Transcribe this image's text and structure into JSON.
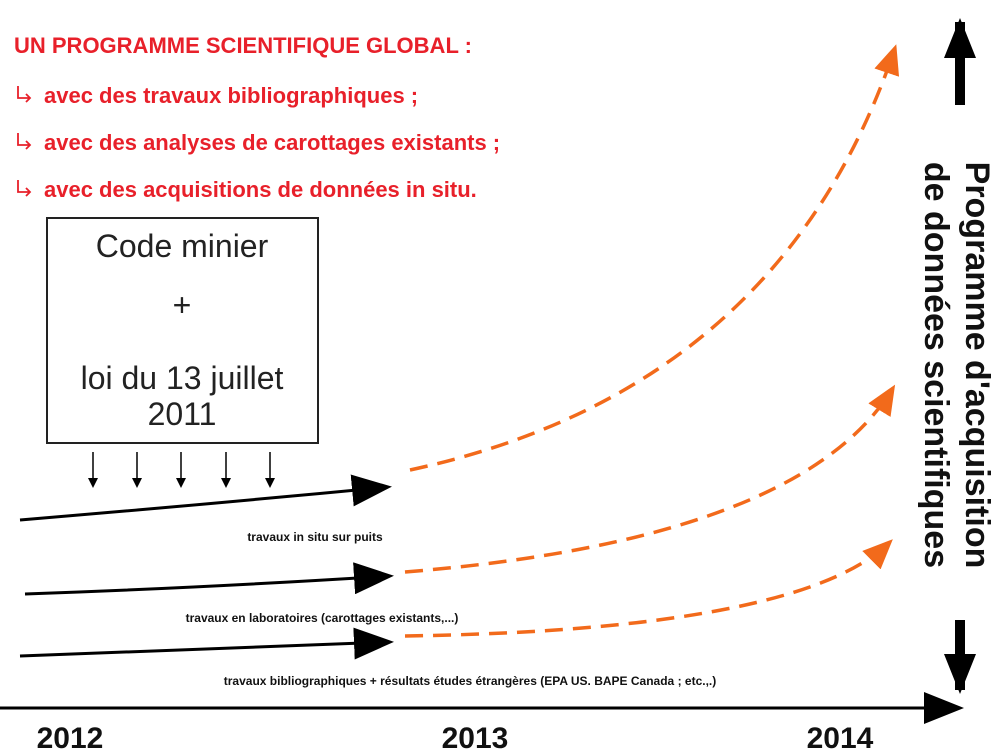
{
  "header": {
    "title": "UN PROGRAMME SCIENTIFIQUE GLOBAL :",
    "items": [
      "avec des travaux bibliographiques ;",
      "avec des analyses de carottages existants ;",
      "avec des acquisitions de données in situ."
    ]
  },
  "box": {
    "lines": [
      "Code minier",
      "+",
      "loi du 13 juillet",
      "2011"
    ]
  },
  "tracks": [
    "travaux in situ sur puits",
    "travaux en laboratoires (carottages existants,...)",
    "travaux bibliographiques + résultats études étrangères (EPA US. BAPE Canada ; etc.,.)"
  ],
  "timeline": [
    "2012",
    "2013",
    "2014"
  ],
  "side": {
    "lines": [
      "Programme d'acquisition",
      "de données scientifiques"
    ]
  }
}
